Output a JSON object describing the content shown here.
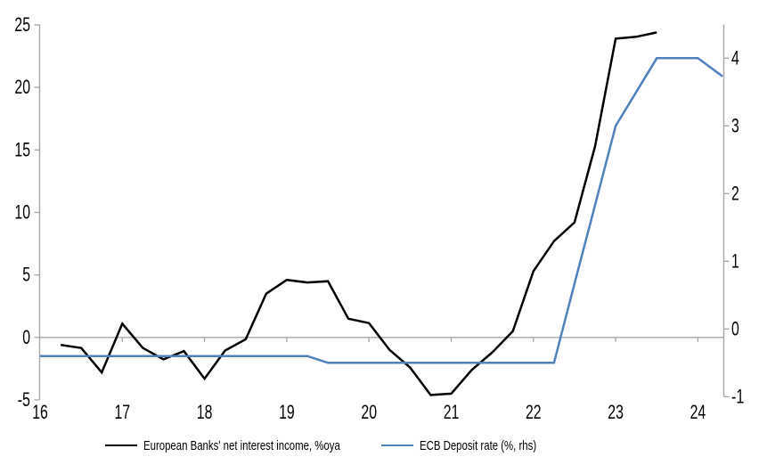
{
  "chart_data": {
    "type": "line",
    "title": "",
    "x_axis": {
      "ticks": [
        16,
        17,
        18,
        19,
        20,
        21,
        22,
        23,
        24
      ]
    },
    "left_axis": {
      "label": "",
      "ticks": [
        25,
        20,
        15,
        10,
        5,
        0,
        -5
      ],
      "range": [
        -5,
        25
      ]
    },
    "right_axis": {
      "label": "",
      "ticks": [
        4,
        3,
        2,
        1,
        0,
        -1
      ],
      "range": [
        -1,
        4.5
      ]
    },
    "grid": "zero-line-only",
    "legend_position": "bottom",
    "series": [
      {
        "name": "European Banks' net interest income, %oya",
        "axis": "left",
        "color": "#000000",
        "x": [
          16.25,
          16.5,
          16.75,
          17.0,
          17.25,
          17.5,
          17.75,
          18.0,
          18.25,
          18.5,
          18.75,
          19.0,
          19.25,
          19.5,
          19.75,
          20.0,
          20.25,
          20.5,
          20.75,
          21.0,
          21.25,
          21.5,
          21.75,
          22.0,
          22.25,
          22.5,
          22.75,
          23.0,
          23.25,
          23.5
        ],
        "values": [
          -0.6,
          -0.85,
          -2.8,
          1.1,
          -0.85,
          -1.75,
          -1.1,
          -3.3,
          -1.05,
          -0.15,
          3.5,
          4.6,
          4.4,
          4.5,
          1.5,
          1.15,
          -1.0,
          -2.4,
          -4.6,
          -4.5,
          -2.6,
          -1.2,
          0.5,
          5.3,
          7.7,
          9.2,
          15.3,
          23.9,
          24.05,
          24.4
        ]
      },
      {
        "name": "ECB Deposit rate (%, rhs)",
        "axis": "right",
        "color": "#4f81bd",
        "x": [
          16.0,
          19.25,
          19.5,
          22.25,
          22.5,
          22.75,
          23.0,
          23.25,
          23.5,
          23.75,
          24.0,
          24.3
        ],
        "values": [
          -0.4,
          -0.4,
          -0.5,
          -0.5,
          0.67,
          1.83,
          3.0,
          3.5,
          4.0,
          4.0,
          4.0,
          3.73
        ]
      }
    ],
    "colors": {
      "axis": "#a6a6a6",
      "text": "#000000"
    },
    "legend": [
      {
        "label": "European Banks' net interest income, %oya",
        "color": "#000000"
      },
      {
        "label": "ECB Deposit rate (%, rhs)",
        "color": "#4f81bd"
      }
    ]
  }
}
